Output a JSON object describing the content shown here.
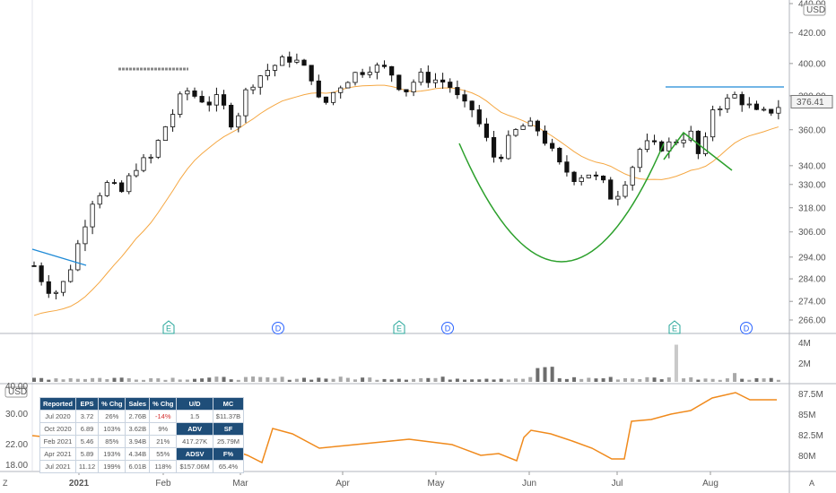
{
  "chart_data": {
    "type": "candlestick",
    "price_axis": {
      "currency": "USD",
      "ticks": [
        440,
        420,
        400,
        380,
        376.41,
        360,
        340,
        330,
        318,
        306,
        294,
        284,
        274,
        266
      ],
      "last_price": "376.41",
      "scale": "log"
    },
    "volume_axis": {
      "ticks": [
        "4M",
        "2M"
      ]
    },
    "lower_axis_left": {
      "currency": "USD",
      "ticks": [
        "40.00",
        "30.00",
        "22.00",
        "18.00"
      ]
    },
    "lower_axis_right": {
      "ticks": [
        "87.5M",
        "85M",
        "82.5M",
        "80M"
      ]
    },
    "x_axis_labels": [
      "2021",
      "Feb",
      "Mar",
      "Apr",
      "May",
      "Jun",
      "Jul",
      "Aug"
    ],
    "event_markers": [
      {
        "label": "E",
        "color": "#26a69a"
      },
      {
        "label": "D",
        "color": "#2962ff"
      },
      {
        "label": "E",
        "color": "#26a69a"
      },
      {
        "label": "D",
        "color": "#2962ff"
      },
      {
        "label": "E",
        "color": "#26a69a"
      },
      {
        "label": "D",
        "color": "#2962ff"
      }
    ],
    "colors": {
      "candle": "#111111",
      "moving_average": "#f5a742",
      "pattern": "#2ca02c",
      "pivot_line": "#1f8ad6",
      "adv_line": "#f08a1c",
      "volume": "#777777"
    },
    "corner_labels": {
      "left": "Z",
      "right": "A"
    },
    "fundamentals_table": {
      "headers": [
        "Reported",
        "EPS",
        "% Chg",
        "Sales",
        "% Chg",
        "U/D",
        "MC"
      ],
      "rows": [
        [
          "Jul 2020",
          "3.72",
          "26%",
          "2.76B",
          "-14%",
          "1.5",
          "$11.37B"
        ],
        [
          "Oct 2020",
          "6.89",
          "103%",
          "3.62B",
          "9%",
          "ADV",
          "SF"
        ],
        [
          "Feb 2021",
          "5.46",
          "85%",
          "3.94B",
          "21%",
          "417.27K",
          "25.79M"
        ],
        [
          "Apr 2021",
          "5.89",
          "193%",
          "4.34B",
          "55%",
          "ADSV",
          "F%"
        ],
        [
          "Jul 2021",
          "11.12",
          "199%",
          "6.01B",
          "118%",
          "$157.06M",
          "65.4%"
        ]
      ]
    }
  }
}
